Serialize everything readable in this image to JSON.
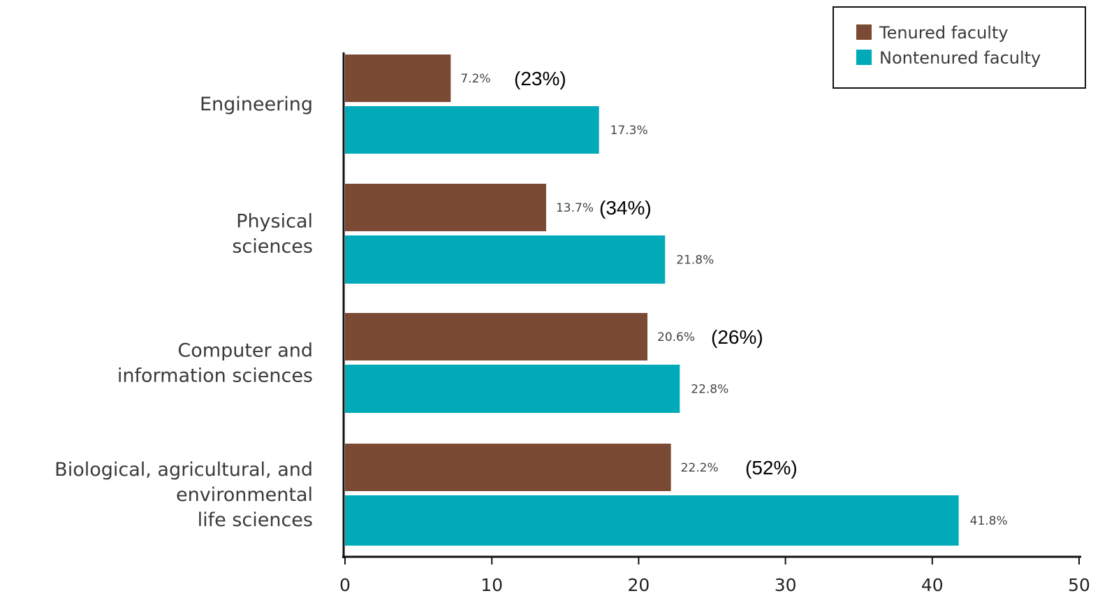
{
  "chart_data": {
    "type": "bar",
    "orientation": "horizontal",
    "categories": [
      [
        "Engineering"
      ],
      [
        "Physical",
        "sciences"
      ],
      [
        "Computer and",
        "information sciences"
      ],
      [
        "Biological, agricultural, and",
        "environmental",
        "life sciences"
      ]
    ],
    "series": [
      {
        "name": "Tenured faculty",
        "color": "#7b4a35",
        "values": [
          7.2,
          13.7,
          20.6,
          22.2
        ],
        "data_labels": [
          "7.2%",
          "13.7%",
          "20.6%",
          "22.2%"
        ]
      },
      {
        "name": "Nontenured faculty",
        "color": "#00aab8",
        "values": [
          17.3,
          21.8,
          22.8,
          41.8
        ],
        "data_labels": [
          "17.3%",
          "21.8%",
          "22.8%",
          "41.8%"
        ]
      }
    ],
    "annotations": [
      "(23%)",
      "(34%)",
      "(26%)",
      "(52%)"
    ],
    "x_ticks": [
      0,
      10,
      20,
      30,
      40,
      50
    ],
    "xlim": [
      0,
      50
    ],
    "legend_position": "top-right",
    "grid": false
  }
}
